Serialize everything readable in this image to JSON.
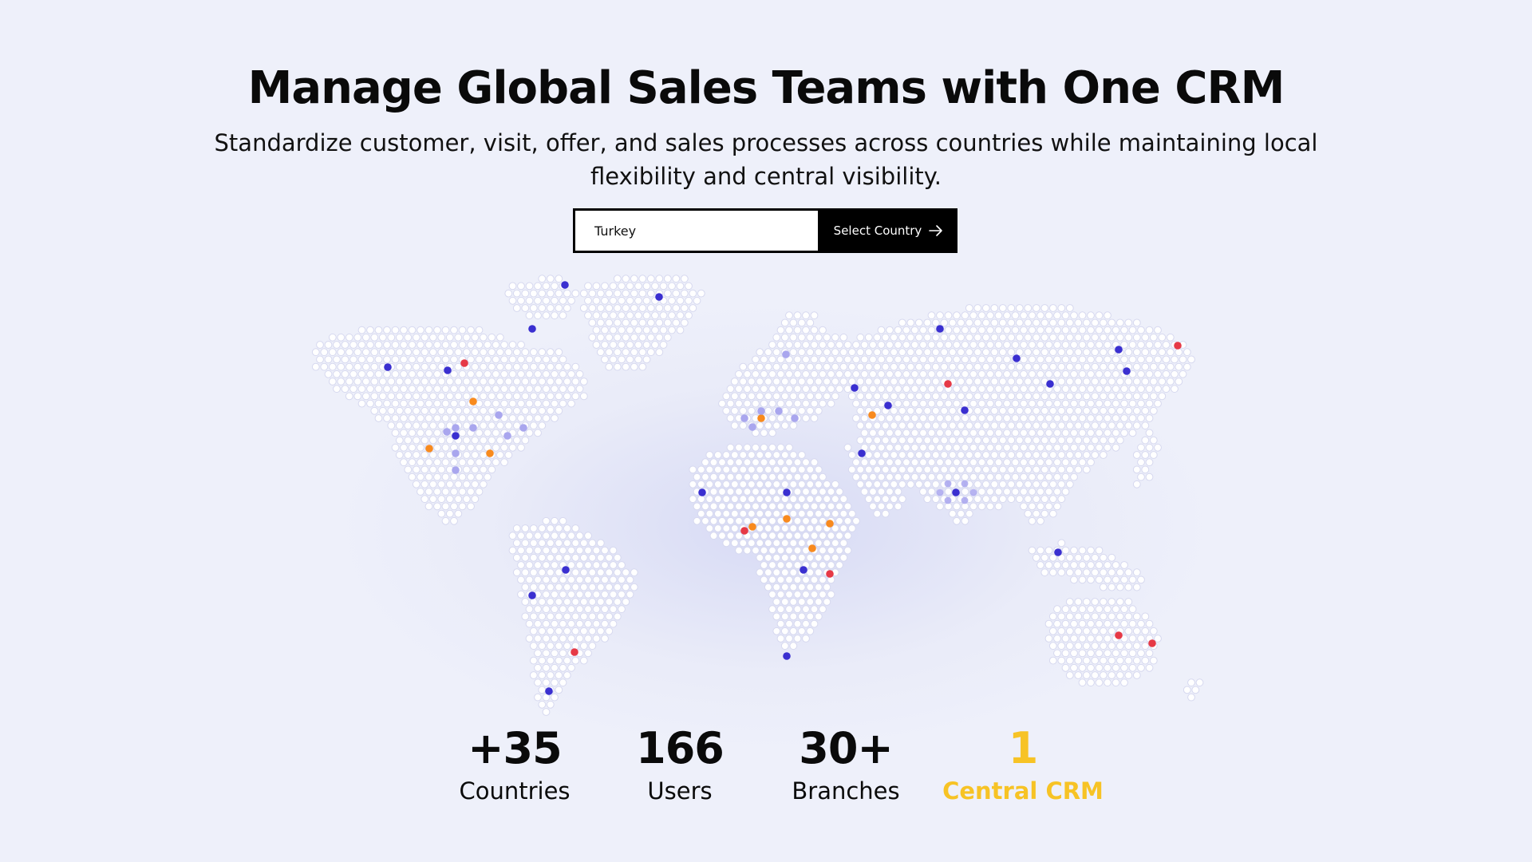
{
  "hero": {
    "title": "Manage Global Sales Teams with One CRM",
    "subtitle": "Standardize customer, visit, offer, and sales processes across countries while maintaining local flexibility and central visibility."
  },
  "country_selector": {
    "value": "Turkey",
    "button_label": "Select Country",
    "button_icon": "arrow-right-icon"
  },
  "map": {
    "marker_colors": {
      "blue": "#3a2fd0",
      "red": "#e63946",
      "orange": "#f88a1e",
      "lavender": "#a9a6ee"
    }
  },
  "stats": [
    {
      "value": "+35",
      "label": "Countries",
      "highlight": false
    },
    {
      "value": "166",
      "label": "Users",
      "highlight": false
    },
    {
      "value": "30+",
      "label": "Branches",
      "highlight": false
    },
    {
      "value": "1",
      "label": "Central CRM",
      "highlight": true
    }
  ],
  "colors": {
    "background": "#eef0fa",
    "accent": "#f7c325",
    "primary": "#000000"
  }
}
